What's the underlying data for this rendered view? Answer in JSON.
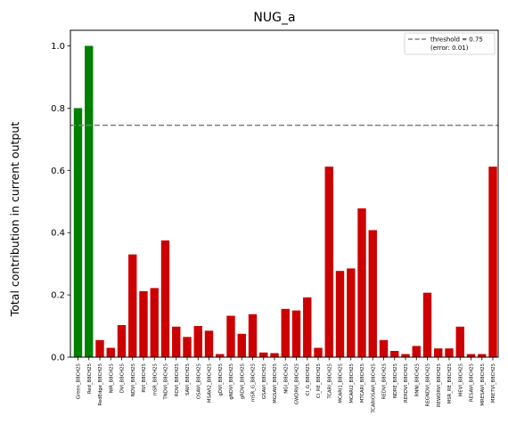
{
  "chart_data": {
    "type": "bar",
    "title": "NUG_a",
    "xlabel": "",
    "ylabel": "Total contribution in current output",
    "ylim": [
      0,
      1.05
    ],
    "yticks": [
      0.0,
      0.2,
      0.4,
      0.6,
      0.8,
      1.0
    ],
    "ytick_labels": [
      "0.0",
      "0.2",
      "0.4",
      "0.6",
      "0.8",
      "1.0"
    ],
    "grid": false,
    "colors": {
      "above": "#008000",
      "below": "#cc0000",
      "threshold": "#808080"
    },
    "threshold": {
      "value": 0.745,
      "label_line1": "threshold = 0.75",
      "label_line2": "(error: 0.01)"
    },
    "legend_position": "top-right",
    "categories": [
      "Green_B8CH25",
      "Red_B8CH25",
      "RedEdge_B8CH25",
      "NIR_B8CH25",
      "DVI_B8CH25",
      "NDVI_B8CH25",
      "RVI_B8CH25",
      "mSR_B8CH25",
      "TNDVI_B8CH25",
      "RDVI_B8CH25",
      "SAVI_B8CH25",
      "OSAVI_B8CH25",
      "MSAVI2_B8CH25",
      "gDVI_B8CH25",
      "gNDVI_B8CH25",
      "gRDVI_B8CH25",
      "mSR_G_B8CH25",
      "GSAVI_B8CH25",
      "MGSAVI_B8CH25",
      "NGI_B8CH25",
      "GWDRVI_B8CH25",
      "CI_G_B8CH25",
      "CI_RE_B8CH25",
      "TCARI_B8CH25",
      "MCARI1_B8CH25",
      "MCARI2_B8CH25",
      "MTCARI_B8CH25",
      "TCARIOSAVI_B8CH25",
      "REDVI_B8CH25",
      "NDRE_B8CH25",
      "RERDVI_B8CH25",
      "RNNI_B8CH25",
      "REGNDVI_B8CH25",
      "REWDRVI_B8CH25",
      "MSR_RE_B8CH25",
      "MEVI_B8CH25",
      "RESAVI_B8CH25",
      "MRESAVI_B8CH25",
      "MRETVI_B8CH25"
    ],
    "values": [
      0.8,
      1.0,
      0.055,
      0.03,
      0.103,
      0.33,
      0.212,
      0.222,
      0.375,
      0.098,
      0.065,
      0.1,
      0.085,
      0.01,
      0.133,
      0.075,
      0.138,
      0.015,
      0.013,
      0.155,
      0.15,
      0.192,
      0.03,
      0.612,
      0.277,
      0.285,
      0.478,
      0.408,
      0.055,
      0.02,
      0.01,
      0.036,
      0.207,
      0.028,
      0.028,
      0.098,
      0.01,
      0.01,
      0.612
    ]
  }
}
